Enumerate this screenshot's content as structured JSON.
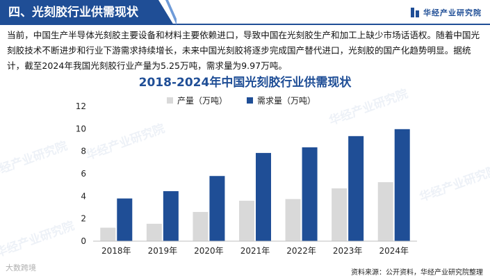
{
  "header": {
    "title": "四、光刻胶行业供需现状",
    "brand": "华经产业研究院"
  },
  "intro": "当前，中国生产半导体光刻胶主要设备和材料主要依赖进口，导致中国在光刻胶生产和加工上缺少市场话语权。随着中国光刻胶技术不断进步和行业下游需求持续增长，未来中国光刻胶将逐步完成国产替代进口，光刻胶的国产化趋势明显。据统计，截至2024年我国光刻胶行业产量为5.25万吨，需求量为9.97万吨。",
  "chart_data": {
    "type": "bar",
    "title": "2018-2024年中国光刻胶行业供需现状",
    "categories": [
      "2018年",
      "2019年",
      "2020年",
      "2021年",
      "2022年",
      "2023年",
      "2024年"
    ],
    "series": [
      {
        "name": "产量（万吨）",
        "color": "#d9d9d9",
        "values": [
          1.2,
          1.55,
          2.6,
          3.6,
          3.75,
          4.7,
          5.25
        ]
      },
      {
        "name": "需求量（万吨）",
        "color": "#1f4e96",
        "values": [
          3.8,
          4.45,
          5.8,
          7.85,
          8.35,
          9.35,
          9.97
        ]
      }
    ],
    "yticks": [
      "0",
      "2",
      "4",
      "6",
      "8",
      "10",
      "12"
    ],
    "ylim": [
      0,
      12
    ],
    "legend_position": "top",
    "grid": false
  },
  "watermark": "华经产业研究院",
  "footer": {
    "logo_text": "大数跨境",
    "source": "资料来源：公开资料，华经产业研究院整理"
  }
}
